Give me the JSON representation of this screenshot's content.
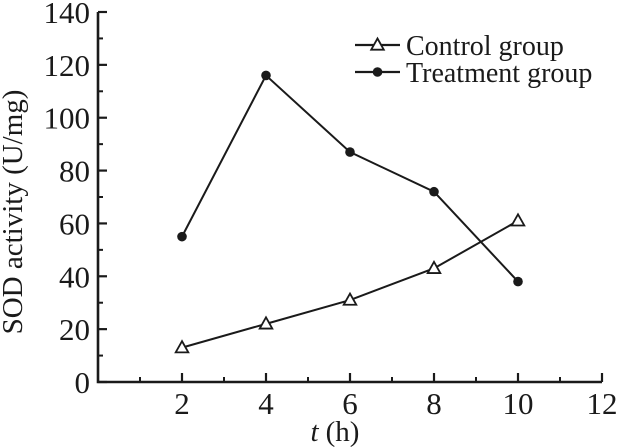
{
  "figure": {
    "background": "#ffffff",
    "ink_color": "#1a1a1a"
  },
  "chart_data": {
    "type": "line",
    "title": "",
    "xlabel_symbol": "t",
    "xlabel_unit": "(h)",
    "ylabel": "SOD activity (U/mg)",
    "xlim": [
      0,
      12
    ],
    "ylim": [
      0,
      140
    ],
    "x_major_ticks": [
      2,
      4,
      6,
      8,
      10,
      12
    ],
    "x_minor_ticks": [
      1,
      3,
      5,
      7,
      9,
      11
    ],
    "y_major_ticks": [
      0,
      20,
      40,
      60,
      80,
      100,
      120,
      140
    ],
    "y_minor_ticks": [
      10,
      30,
      50,
      70,
      90,
      110,
      130
    ],
    "grid": false,
    "legend_position": "top-right",
    "x": [
      2,
      4,
      6,
      8,
      10
    ],
    "series": [
      {
        "name": "Control group",
        "marker": "open-triangle",
        "values": [
          13,
          22,
          31,
          43,
          61
        ]
      },
      {
        "name": "Treatment group",
        "marker": "filled-circle",
        "values": [
          55,
          116,
          87,
          72,
          38
        ]
      }
    ]
  }
}
